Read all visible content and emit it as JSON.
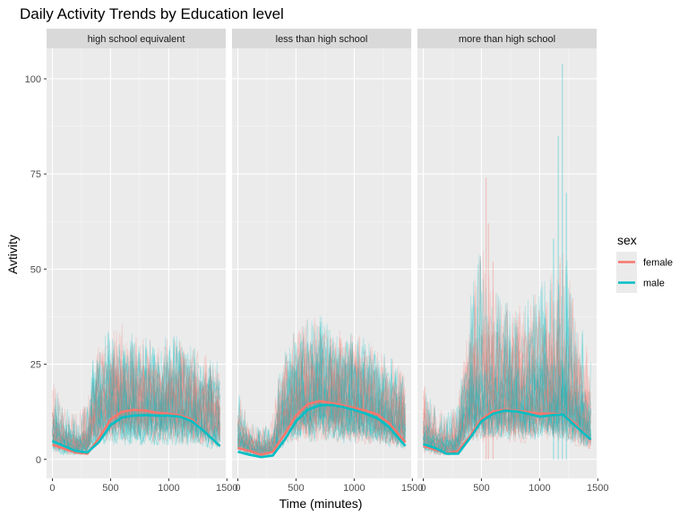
{
  "chart_data": {
    "type": "line",
    "title": "Daily Activity Trends by Education level",
    "xlabel": "Time (minutes)",
    "ylabel": "Avtivity",
    "xlim": [
      -50,
      1490
    ],
    "ylim": [
      -5,
      108
    ],
    "x_ticks": [
      0,
      500,
      1000,
      1500
    ],
    "x_tick_labels": [
      "0",
      "500",
      "1000",
      "1500"
    ],
    "y_ticks": [
      0,
      25,
      50,
      75,
      100
    ],
    "y_tick_labels": [
      "0",
      "25",
      "50",
      "75",
      "100"
    ],
    "grid": true,
    "legend": {
      "title": "sex",
      "position": "right",
      "entries": [
        {
          "label": "female",
          "color": "#F8766D"
        },
        {
          "label": "male",
          "color": "#00BFC4"
        }
      ]
    },
    "facets": [
      {
        "label": "high school equivalent",
        "series": [
          {
            "name": "female",
            "x": [
              0,
              100,
              200,
              300,
              400,
              500,
              600,
              700,
              800,
              900,
              1000,
              1100,
              1200,
              1300,
              1440
            ],
            "values": [
              3.8,
              2.8,
              1.8,
              1.5,
              5.5,
              10.5,
              12.5,
              13.0,
              12.8,
              12.2,
              12.0,
              11.5,
              10.5,
              7.5,
              3.5
            ]
          },
          {
            "name": "male",
            "x": [
              0,
              100,
              200,
              300,
              400,
              500,
              600,
              700,
              800,
              900,
              1000,
              1100,
              1200,
              1300,
              1440
            ],
            "values": [
              4.8,
              3.5,
              2.2,
              1.8,
              4.5,
              9.0,
              11.0,
              11.5,
              11.6,
              11.5,
              11.5,
              11.2,
              10.0,
              7.5,
              3.5
            ]
          }
        ],
        "envelope": {
          "x": [
            0,
            100,
            200,
            300,
            350,
            400,
            500,
            600,
            700,
            800,
            900,
            1000,
            1100,
            1200,
            1300,
            1440
          ],
          "upper": [
            22,
            14,
            12,
            15,
            27,
            30,
            35,
            36,
            33,
            32,
            32,
            33,
            32,
            30,
            28,
            26
          ],
          "core": [
            12,
            8,
            6,
            7,
            20,
            22,
            25,
            25,
            24,
            24,
            24,
            24,
            24,
            22,
            20,
            18
          ]
        }
      },
      {
        "label": "less than high school",
        "series": [
          {
            "name": "female",
            "x": [
              0,
              100,
              200,
              300,
              400,
              500,
              600,
              700,
              800,
              900,
              1000,
              1100,
              1200,
              1300,
              1440
            ],
            "values": [
              3.0,
              2.2,
              1.2,
              2.0,
              6.5,
              11.5,
              14.5,
              15.3,
              14.8,
              14.2,
              13.5,
              12.8,
              11.8,
              9.5,
              4.5
            ]
          },
          {
            "name": "male",
            "x": [
              0,
              100,
              200,
              300,
              400,
              500,
              600,
              700,
              800,
              900,
              1000,
              1100,
              1200,
              1300,
              1440
            ],
            "values": [
              2.0,
              1.2,
              0.6,
              1.0,
              5.0,
              10.0,
              13.0,
              14.2,
              14.3,
              13.8,
              13.0,
              12.0,
              10.8,
              8.5,
              3.5
            ]
          }
        ],
        "envelope": {
          "x": [
            0,
            100,
            200,
            300,
            350,
            400,
            500,
            600,
            700,
            800,
            900,
            1000,
            1100,
            1200,
            1300,
            1440
          ],
          "upper": [
            18,
            10,
            8,
            12,
            22,
            28,
            35,
            37,
            38,
            36,
            35,
            33,
            32,
            30,
            27,
            24
          ],
          "core": [
            10,
            6,
            4,
            6,
            14,
            20,
            25,
            27,
            28,
            27,
            26,
            25,
            24,
            22,
            19,
            15
          ]
        }
      },
      {
        "label": "more than high school",
        "series": [
          {
            "name": "female",
            "x": [
              0,
              100,
              200,
              300,
              400,
              500,
              600,
              700,
              800,
              900,
              1000,
              1100,
              1200,
              1300,
              1440
            ],
            "values": [
              3.5,
              2.6,
              1.6,
              2.2,
              6.0,
              10.5,
              12.6,
              13.0,
              12.8,
              12.4,
              12.0,
              12.0,
              11.8,
              9.5,
              5.0
            ]
          },
          {
            "name": "male",
            "x": [
              0,
              100,
              200,
              300,
              400,
              500,
              600,
              700,
              800,
              900,
              1000,
              1100,
              1200,
              1300,
              1440
            ],
            "values": [
              4.0,
              3.0,
              1.5,
              1.5,
              5.5,
              10.0,
              12.0,
              12.8,
              12.6,
              12.0,
              11.2,
              11.6,
              11.8,
              9.0,
              5.2
            ]
          }
        ],
        "envelope": {
          "x": [
            0,
            100,
            200,
            300,
            350,
            400,
            500,
            600,
            700,
            800,
            900,
            1000,
            1100,
            1200,
            1300,
            1440
          ],
          "upper": [
            20,
            14,
            12,
            15,
            30,
            42,
            58,
            45,
            42,
            40,
            42,
            45,
            55,
            60,
            40,
            28
          ],
          "core": [
            12,
            8,
            6,
            8,
            22,
            28,
            30,
            30,
            29,
            28,
            29,
            30,
            30,
            30,
            24,
            16
          ]
        },
        "peaks": [
          {
            "x": 540,
            "y": 74,
            "color": "#F8766D"
          },
          {
            "x": 560,
            "y": 62,
            "color": "#F8766D"
          },
          {
            "x": 600,
            "y": 52,
            "color": "#F8766D"
          },
          {
            "x": 1160,
            "y": 85,
            "color": "#00BFC4"
          },
          {
            "x": 1195,
            "y": 104,
            "color": "#00BFC4"
          },
          {
            "x": 1230,
            "y": 70,
            "color": "#00BFC4"
          },
          {
            "x": 1120,
            "y": 58,
            "color": "#00BFC4"
          }
        ]
      }
    ]
  }
}
